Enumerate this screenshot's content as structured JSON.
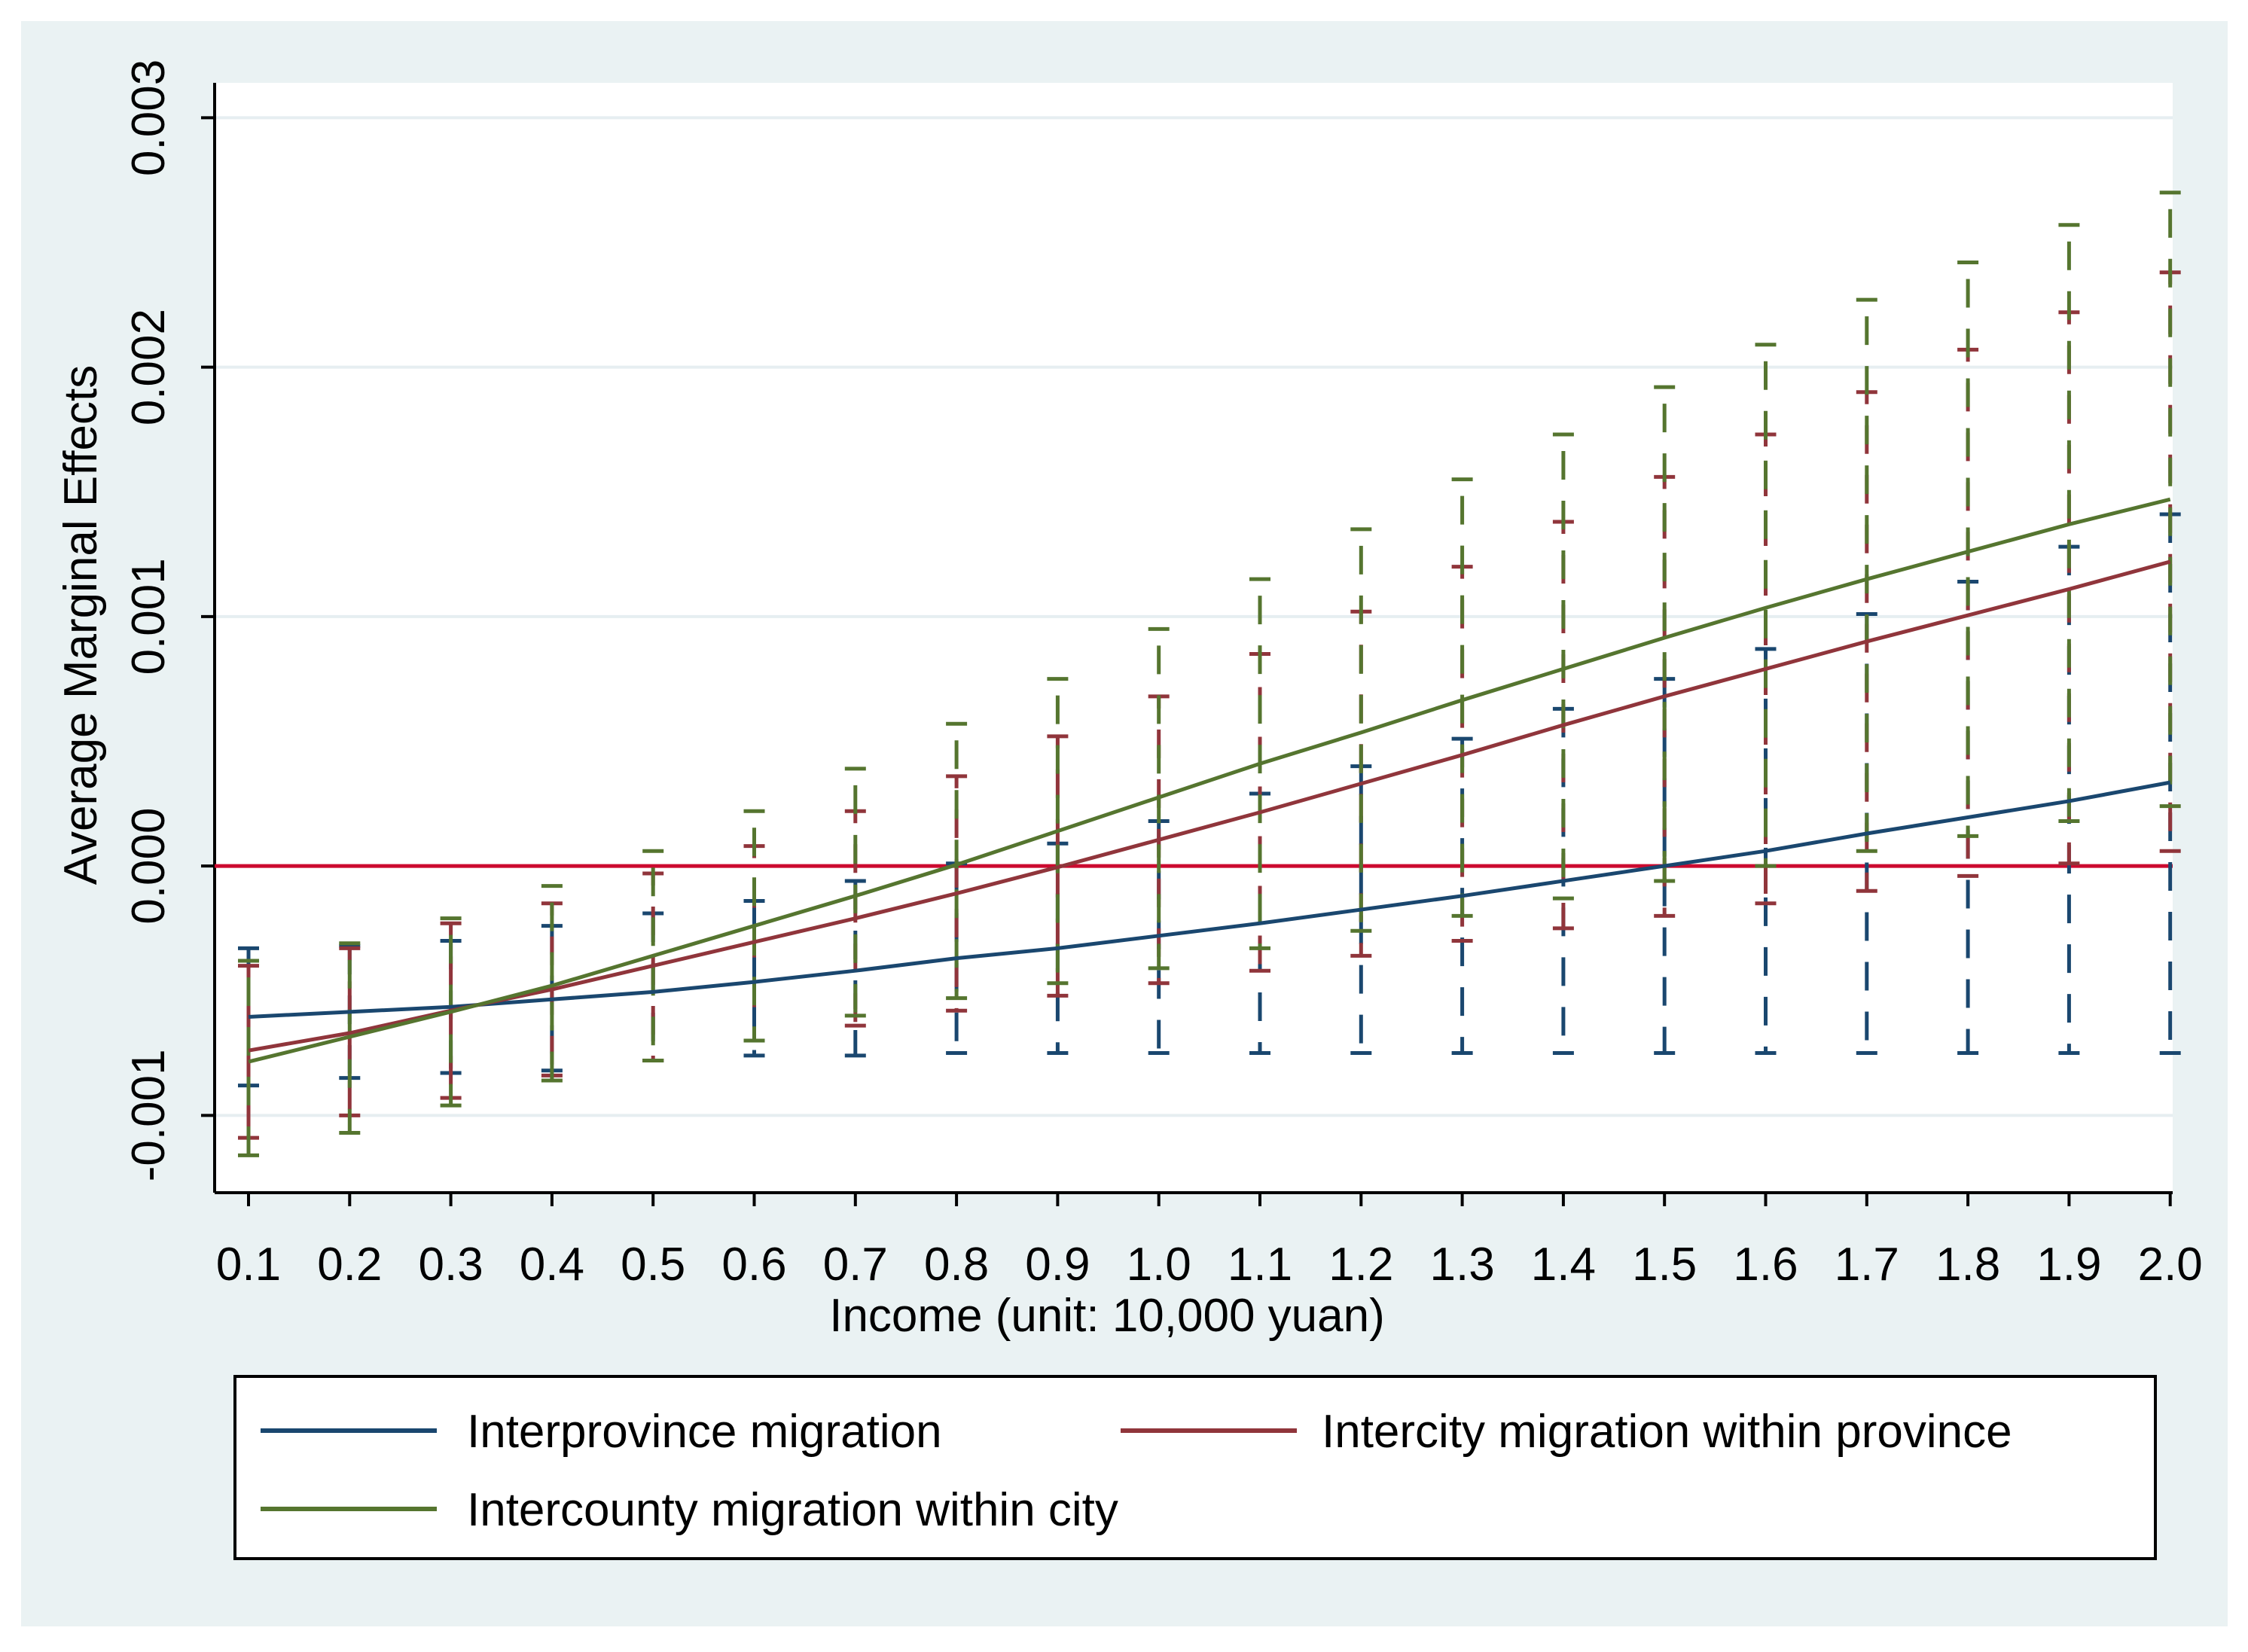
{
  "chart_data": {
    "type": "line",
    "title": "",
    "xlabel": "Income (unit: 10,000 yuan)",
    "ylabel": "Average Marginal Effects",
    "x": [
      0.1,
      0.2,
      0.3,
      0.4,
      0.5,
      0.6,
      0.7,
      0.8,
      0.9,
      1.0,
      1.1,
      1.2,
      1.3,
      1.4,
      1.5,
      1.6,
      1.7,
      1.8,
      1.9,
      2.0
    ],
    "x_tick_labels": [
      "0.1",
      "0.2",
      "0.3",
      "0.4",
      "0.5",
      "0.6",
      "0.7",
      "0.8",
      "0.9",
      "1.0",
      "1.1",
      "1.2",
      "1.3",
      "1.4",
      "1.5",
      "1.6",
      "1.7",
      "1.8",
      "1.9",
      "2.0"
    ],
    "ylim": [
      -0.00131,
      0.00314
    ],
    "y_ticks": [
      -0.001,
      0.0,
      0.001,
      0.002,
      0.003
    ],
    "y_tick_labels": [
      "-0.001",
      "0.000",
      "0.001",
      "0.002",
      "0.003"
    ],
    "grid": true,
    "reference_line": {
      "y": 0.0,
      "color": "#cc0a2f"
    },
    "legend_position": "bottom",
    "series": [
      {
        "name": "Interprovince migration",
        "color": "#1a476f",
        "values": [
          -0.000605,
          -0.000585,
          -0.000565,
          -0.000535,
          -0.000505,
          -0.000465,
          -0.00042,
          -0.00037,
          -0.00033,
          -0.00028,
          -0.00023,
          -0.000175,
          -0.00012,
          -6e-05,
          0.0,
          6e-05,
          0.00013,
          0.000195,
          0.00026,
          0.000335
        ],
        "ci_lower": [
          -0.00088,
          -0.00085,
          -0.00083,
          -0.00082,
          -0.00078,
          -0.00076,
          -0.00076,
          -0.00075,
          -0.00075,
          -0.00075,
          -0.00075,
          -0.00075,
          -0.00075,
          -0.00075,
          -0.00075,
          -0.00075,
          -0.00075,
          -0.00075,
          -0.00075,
          -0.00075
        ],
        "ci_upper": [
          -0.00033,
          -0.00032,
          -0.0003,
          -0.00024,
          -0.00019,
          -0.00014,
          -6e-05,
          1e-05,
          9e-05,
          0.00018,
          0.00029,
          0.0004,
          0.00051,
          0.00063,
          0.00075,
          0.00087,
          0.00101,
          0.00114,
          0.00128,
          0.00141
        ]
      },
      {
        "name": "Intercity migration within province",
        "color": "#90353b",
        "values": [
          -0.00074,
          -0.00067,
          -0.00058,
          -0.000495,
          -0.0004,
          -0.000305,
          -0.00021,
          -0.00011,
          -5e-06,
          0.000105,
          0.000215,
          0.00033,
          0.000445,
          0.000565,
          0.00068,
          0.00079,
          0.0009,
          0.001005,
          0.00111,
          0.00122
        ],
        "ci_lower": [
          -0.00109,
          -0.001,
          -0.00093,
          -0.00084,
          -0.00078,
          -0.0007,
          -0.00064,
          -0.00058,
          -0.00052,
          -0.00047,
          -0.00042,
          -0.00036,
          -0.0003,
          -0.00025,
          -0.0002,
          -0.00015,
          -0.0001,
          -4e-05,
          1e-05,
          6e-05
        ],
        "ci_upper": [
          -0.0004,
          -0.00033,
          -0.00023,
          -0.00015,
          -3e-05,
          8e-05,
          0.00022,
          0.00036,
          0.00052,
          0.00068,
          0.00085,
          0.00102,
          0.0012,
          0.00138,
          0.00156,
          0.00173,
          0.0019,
          0.00207,
          0.00222,
          0.00238
        ]
      },
      {
        "name": "Intercounty migration within city",
        "color": "#55752f",
        "values": [
          -0.000785,
          -0.000685,
          -0.000585,
          -0.00048,
          -0.00036,
          -0.00024,
          -0.00012,
          5e-06,
          0.00014,
          0.000275,
          0.00041,
          0.000535,
          0.000665,
          0.00079,
          0.000915,
          0.001035,
          0.00115,
          0.00126,
          0.00137,
          0.00147
        ],
        "ci_lower": [
          -0.00116,
          -0.00107,
          -0.00096,
          -0.00086,
          -0.00078,
          -0.0007,
          -0.0006,
          -0.00053,
          -0.00047,
          -0.00041,
          -0.00033,
          -0.00026,
          -0.0002,
          -0.00013,
          -6e-05,
          0.0,
          6e-05,
          0.00012,
          0.00018,
          0.00024
        ],
        "ci_upper": [
          -0.00038,
          -0.00031,
          -0.00021,
          -8e-05,
          6e-05,
          0.00022,
          0.00039,
          0.00057,
          0.00075,
          0.00095,
          0.00115,
          0.00135,
          0.00155,
          0.00173,
          0.00192,
          0.00209,
          0.00227,
          0.00242,
          0.00257,
          0.0027
        ]
      }
    ]
  }
}
